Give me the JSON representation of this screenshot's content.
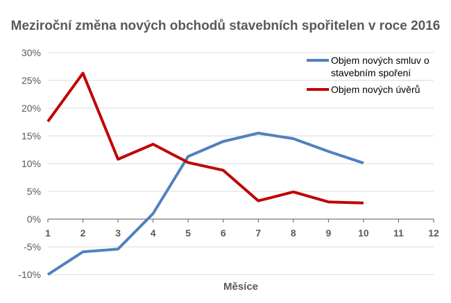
{
  "chart_data": {
    "type": "line",
    "title": "Meziroční změna nových obchodů stavebních spořitelen v roce 2016",
    "xlabel": "Měsíce",
    "ylabel": "",
    "x": [
      1,
      2,
      3,
      4,
      5,
      6,
      7,
      8,
      9,
      10
    ],
    "x_ticks": [
      "1",
      "2",
      "3",
      "4",
      "5",
      "6",
      "7",
      "8",
      "9",
      "10",
      "11",
      "12"
    ],
    "xlim": [
      1,
      12
    ],
    "ylim": [
      -10,
      30
    ],
    "y_ticks": [
      "-10%",
      "-5%",
      "0%",
      "5%",
      "10%",
      "15%",
      "20%",
      "25%",
      "30%"
    ],
    "grid": true,
    "legend_position": "top-right",
    "series": [
      {
        "name_lines": [
          "Objem nových smluv o",
          "stavebním spoření"
        ],
        "color": "#4f81bd",
        "values": [
          -10.0,
          -5.9,
          -5.4,
          1.0,
          11.3,
          14.0,
          15.5,
          14.5,
          12.2,
          10.1
        ]
      },
      {
        "name_lines": [
          "Objem nových úvěrů"
        ],
        "color": "#c00000",
        "values": [
          17.6,
          26.3,
          10.8,
          13.5,
          10.2,
          8.8,
          3.3,
          4.9,
          3.1,
          2.9
        ]
      }
    ]
  }
}
